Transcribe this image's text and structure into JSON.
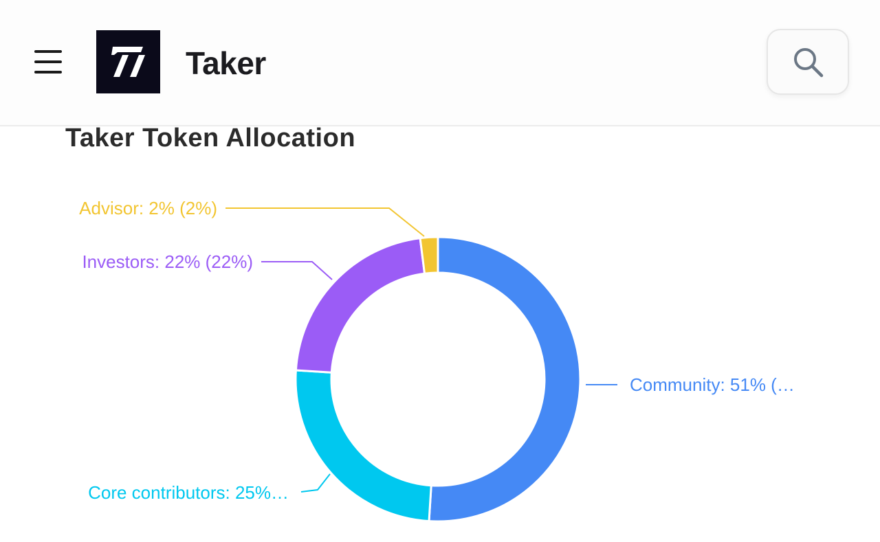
{
  "header": {
    "menu_icon": "menu-icon",
    "logo_icon": "taker-logo",
    "brand_name": "Taker",
    "search_icon": "search-icon"
  },
  "page": {
    "title": "Taker Token Allocation"
  },
  "chart_data": {
    "type": "pie",
    "donut": true,
    "slices": [
      {
        "name": "Community",
        "value": 51,
        "label": "Community: 51% (…",
        "color": "#4589f5"
      },
      {
        "name": "Core contributors",
        "value": 25,
        "label": "Core contributors: 25%…",
        "color": "#00c8ef"
      },
      {
        "name": "Investors",
        "value": 22,
        "label": "Investors: 22% (22%)",
        "color": "#9b5cf6"
      },
      {
        "name": "Advisor",
        "value": 2,
        "label": "Advisor: 2% (2%)",
        "color": "#f2c531"
      }
    ],
    "start": "top",
    "direction": "clockwise"
  }
}
